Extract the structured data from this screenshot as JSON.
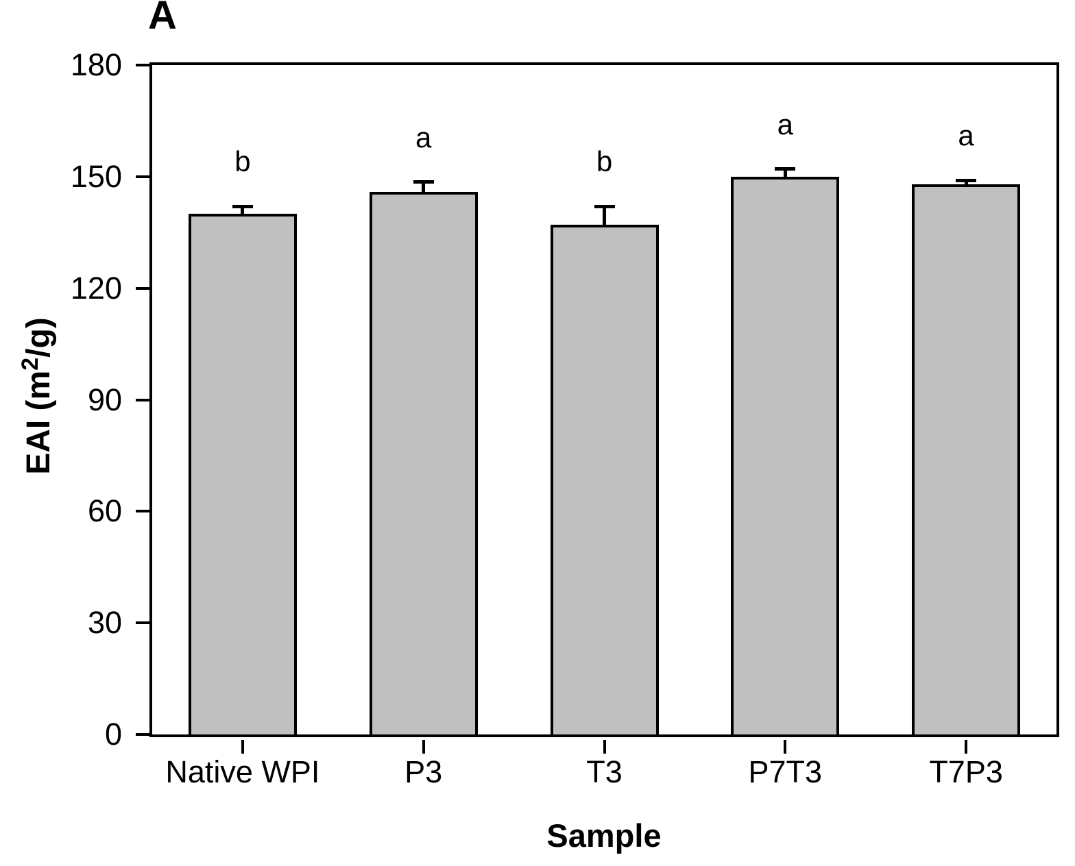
{
  "figure": {
    "panel_label": "A",
    "background_color": "#ffffff"
  },
  "chart_data": {
    "type": "bar",
    "panel_label": "A",
    "categories": [
      "Native WPI",
      "P3",
      "T3",
      "P7T3",
      "T7P3"
    ],
    "values": [
      140,
      146,
      137,
      150,
      148
    ],
    "errors_plus": [
      2,
      2.5,
      5,
      2,
      1
    ],
    "significance_letters": [
      "b",
      "a",
      "b",
      "a",
      "a"
    ],
    "xlabel": "Sample",
    "ylabel": "EAI (m²/g)",
    "ylabel_parts": {
      "pre": "EAI (m",
      "sup": "2",
      "post": "/g)"
    },
    "ylim": [
      0,
      180
    ],
    "yticks": [
      0,
      30,
      60,
      90,
      120,
      150,
      180
    ],
    "grid": false,
    "legend_position": "none",
    "bar_fill_color": "#C0C0C0",
    "bar_border_color": "#000000",
    "axis_color": "#000000"
  }
}
